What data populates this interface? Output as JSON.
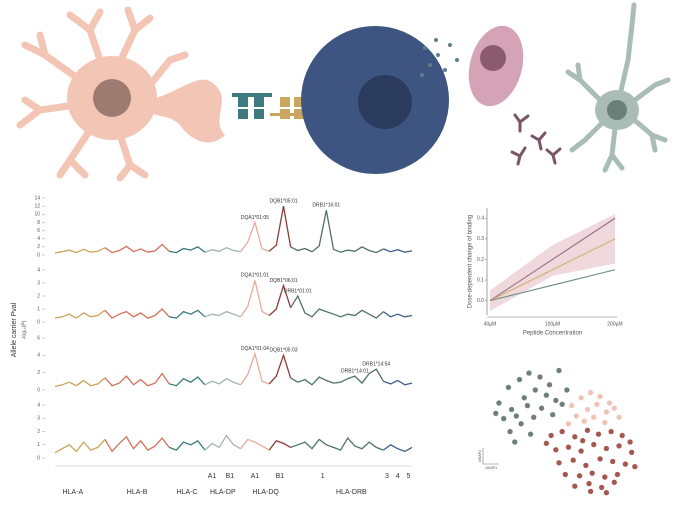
{
  "chart_data": [
    {
      "type": "manhattan",
      "ylabel": "Allele carrier Pval",
      "ylabel2": "-log₁₀(P)",
      "xlim": [
        0,
        100
      ],
      "x": [
        0,
        2,
        4,
        6,
        8,
        10,
        12,
        14,
        16,
        18,
        20,
        22,
        24,
        26,
        28,
        30,
        32,
        34,
        36,
        38,
        40,
        42,
        44,
        46,
        48,
        50,
        52,
        54,
        56,
        58,
        60,
        62,
        64,
        66,
        68,
        70,
        72,
        74,
        76,
        78,
        80,
        82,
        84,
        86,
        88,
        90,
        92,
        94,
        96,
        98,
        100
      ],
      "segments": [
        {
          "start": 0,
          "end": 14,
          "color": "#c8a558"
        },
        {
          "start": 14,
          "end": 32,
          "color": "#d4705c"
        },
        {
          "start": 32,
          "end": 42,
          "color": "#3d7880"
        },
        {
          "start": 42,
          "end": 52,
          "color": "#a3b3b0"
        },
        {
          "start": 52,
          "end": 60,
          "color": "#eba99c"
        },
        {
          "start": 60,
          "end": 66,
          "color": "#8e3a3a"
        },
        {
          "start": 66,
          "end": 92,
          "color": "#4f7266"
        },
        {
          "start": 92,
          "end": 100,
          "color": "#3e5e8c"
        }
      ],
      "gene_labels": [
        {
          "name": "HLA-A",
          "x": 5
        },
        {
          "name": "HLA-B",
          "x": 23
        },
        {
          "name": "HLA-C",
          "x": 37
        },
        {
          "name": "HLA-DP",
          "x": 47
        },
        {
          "name": "HLA-DQ",
          "x": 59
        },
        {
          "name": "HLA-DRB",
          "x": 83
        }
      ],
      "sub_labels": [
        {
          "name": "A1",
          "x": 44
        },
        {
          "name": "B1",
          "x": 49
        },
        {
          "name": "A1",
          "x": 56
        },
        {
          "name": "B1",
          "x": 63
        },
        {
          "name": "1",
          "x": 75
        },
        {
          "name": "3",
          "x": 93
        },
        {
          "name": "4",
          "x": 96
        },
        {
          "name": "5",
          "x": 99
        }
      ],
      "panels": [
        {
          "ylim": [
            0,
            14
          ],
          "yticks": [
            0,
            2,
            4,
            6,
            8,
            10,
            12,
            14
          ],
          "values": [
            0.5,
            0.8,
            1.2,
            0.6,
            1.4,
            0.7,
            0.9,
            1.8,
            0.6,
            1.1,
            2.1,
            0.8,
            1.5,
            0.7,
            1.0,
            2.6,
            0.9,
            0.6,
            1.6,
            1.2,
            2.0,
            0.7,
            1.3,
            0.9,
            1.8,
            1.1,
            0.8,
            3.2,
            8.0,
            1.5,
            0.9,
            2.4,
            12.0,
            2.0,
            1.1,
            1.6,
            0.8,
            2.2,
            11.0,
            1.4,
            0.7,
            1.2,
            0.9,
            2.0,
            1.1,
            0.6,
            1.5,
            0.8,
            1.3,
            0.7,
            1.0
          ],
          "annotations": [
            {
              "text": "DQA1*01:05",
              "x": 56,
              "y": 8.0
            },
            {
              "text": "DQB1*05:01",
              "x": 64,
              "y": 12.0
            },
            {
              "text": "DRB1*16:01",
              "x": 76,
              "y": 11.0
            }
          ]
        },
        {
          "ylim": [
            0,
            4
          ],
          "yticks": [
            0,
            1,
            2,
            3,
            4
          ],
          "values": [
            0.3,
            0.4,
            0.6,
            0.3,
            0.7,
            0.4,
            0.5,
            0.9,
            0.3,
            0.6,
            0.8,
            0.4,
            0.7,
            0.3,
            0.5,
            1.0,
            0.4,
            0.3,
            0.8,
            0.6,
            0.9,
            0.4,
            0.6,
            0.5,
            0.8,
            0.6,
            0.4,
            1.2,
            3.2,
            0.8,
            0.5,
            1.0,
            2.8,
            1.1,
            2.0,
            0.7,
            0.4,
            1.0,
            0.8,
            0.6,
            0.4,
            0.6,
            0.5,
            0.9,
            0.6,
            0.3,
            0.8,
            0.4,
            0.6,
            0.4,
            0.5
          ],
          "annotations": [
            {
              "text": "DQA1*01:01",
              "x": 56,
              "y": 3.2
            },
            {
              "text": "DQB1*06:01",
              "x": 64,
              "y": 2.8
            },
            {
              "text": "DRB1*01:01",
              "x": 68,
              "y": 2.0
            }
          ]
        },
        {
          "ylim": [
            0,
            6
          ],
          "yticks": [
            0,
            2,
            4,
            6
          ],
          "values": [
            0.4,
            0.6,
            0.9,
            0.5,
            1.1,
            0.5,
            0.7,
            1.4,
            0.5,
            0.8,
            1.6,
            0.6,
            1.2,
            0.5,
            0.8,
            1.9,
            0.7,
            0.5,
            1.3,
            0.9,
            1.5,
            0.6,
            1.0,
            0.7,
            1.3,
            0.9,
            0.6,
            1.8,
            4.2,
            1.0,
            0.7,
            1.6,
            4.0,
            1.4,
            0.9,
            1.2,
            0.6,
            1.5,
            1.1,
            0.8,
            0.9,
            1.3,
            1.6,
            0.8,
            1.9,
            2.4,
            1.0,
            0.7,
            1.1,
            0.6,
            0.8
          ],
          "annotations": [
            {
              "text": "DQA1*01:04",
              "x": 56,
              "y": 4.2
            },
            {
              "text": "DQB1*05:03",
              "x": 64,
              "y": 4.0
            },
            {
              "text": "DRB1*14:01",
              "x": 84,
              "y": 1.6
            },
            {
              "text": "DRB1*14:54",
              "x": 90,
              "y": 2.4
            }
          ]
        },
        {
          "ylim": [
            0,
            4
          ],
          "yticks": [
            0,
            1,
            2,
            3,
            4
          ],
          "values": [
            0.4,
            0.7,
            1.0,
            0.5,
            1.2,
            0.6,
            0.8,
            1.4,
            0.5,
            1.1,
            1.6,
            0.7,
            1.3,
            0.6,
            0.9,
            1.5,
            0.8,
            0.6,
            1.2,
            1.0,
            1.3,
            0.6,
            1.1,
            0.8,
            1.7,
            1.0,
            0.7,
            1.4,
            1.2,
            0.9,
            0.6,
            1.3,
            1.1,
            0.8,
            1.0,
            1.2,
            0.7,
            1.4,
            1.0,
            0.8,
            0.6,
            1.5,
            0.9,
            0.7,
            1.2,
            0.8,
            0.6,
            1.0,
            0.7,
            0.5,
            0.8
          ],
          "annotations": []
        }
      ]
    },
    {
      "type": "line",
      "xlabel": "Peptide Concentration",
      "ylabel": "Dose-dependent change of binding",
      "categories": [
        "40µM",
        "100µM",
        "200µM"
      ],
      "ylim": [
        -0.06,
        0.44
      ],
      "yticks": [
        {
          "value": 0,
          "label": "0.0"
        },
        0.1,
        0.2,
        0.3,
        0.4
      ],
      "series": [
        {
          "color": "#9a6b8a",
          "values": [
            0,
            0.2,
            0.4
          ],
          "lower": [
            -0.05,
            0.12,
            0.18
          ],
          "upper": [
            0.05,
            0.27,
            0.42
          ],
          "band_color": "#e8c9cf"
        },
        {
          "color": "#d1b070",
          "values": [
            0,
            0.15,
            0.3
          ]
        },
        {
          "color": "#6f8a86",
          "values": [
            0,
            0.075,
            0.15
          ]
        }
      ]
    },
    {
      "type": "scatter",
      "xlabel": "UMAP1",
      "ylabel": "UMAP2",
      "xlim": [
        0,
        10
      ],
      "ylim": [
        0,
        10
      ],
      "series": [
        {
          "color": "#6d7f78",
          "x": [
            1.2,
            1.8,
            2.5,
            3.1,
            3.8,
            4.4,
            5.0,
            2.0,
            2.8,
            3.5,
            4.2,
            1.5,
            2.3,
            3.0,
            3.9,
            4.8,
            5.5,
            1.0,
            1.9,
            2.6,
            3.4,
            4.6,
            2.2,
            3.2,
            5.2
          ],
          "y": [
            7.0,
            8.2,
            8.8,
            9.3,
            9.0,
            8.4,
            9.5,
            6.5,
            7.4,
            8.0,
            7.6,
            5.8,
            6.0,
            6.8,
            6.6,
            7.2,
            8.0,
            6.2,
            4.8,
            5.4,
            5.9,
            6.1,
            4.0,
            4.6,
            6.9
          ]
        },
        {
          "color": "#efc3b6",
          "x": [
            5.8,
            6.4,
            7.0,
            7.6,
            8.2,
            6.1,
            6.8,
            7.4,
            8.0,
            8.5,
            5.6,
            6.6,
            7.2,
            7.9,
            8.8
          ],
          "y": [
            6.8,
            7.4,
            7.8,
            7.5,
            7.0,
            6.0,
            6.5,
            6.9,
            6.3,
            6.6,
            5.4,
            5.6,
            5.9,
            5.5,
            5.9
          ]
        },
        {
          "color": "#a4574f",
          "x": [
            4.5,
            5.2,
            6.0,
            6.8,
            7.5,
            8.3,
            9.0,
            9.5,
            4.8,
            5.6,
            6.4,
            7.2,
            8.0,
            8.8,
            9.6,
            5.0,
            5.9,
            6.7,
            7.6,
            8.4,
            9.2,
            5.4,
            6.3,
            7.1,
            7.9,
            8.7,
            6.0,
            6.9,
            7.7,
            8.5,
            4.2,
            9.8,
            7.0,
            8.0,
            6.5
          ],
          "y": [
            4.5,
            4.8,
            4.4,
            4.9,
            4.6,
            4.8,
            4.5,
            4.0,
            3.4,
            3.6,
            3.3,
            3.8,
            3.5,
            3.7,
            3.2,
            2.4,
            2.6,
            2.2,
            2.7,
            2.5,
            2.3,
            1.5,
            1.4,
            1.6,
            1.3,
            1.5,
            0.6,
            0.8,
            0.5,
            0.9,
            3.9,
            2.1,
            0.2,
            0.1,
            4.1
          ]
        }
      ]
    }
  ]
}
